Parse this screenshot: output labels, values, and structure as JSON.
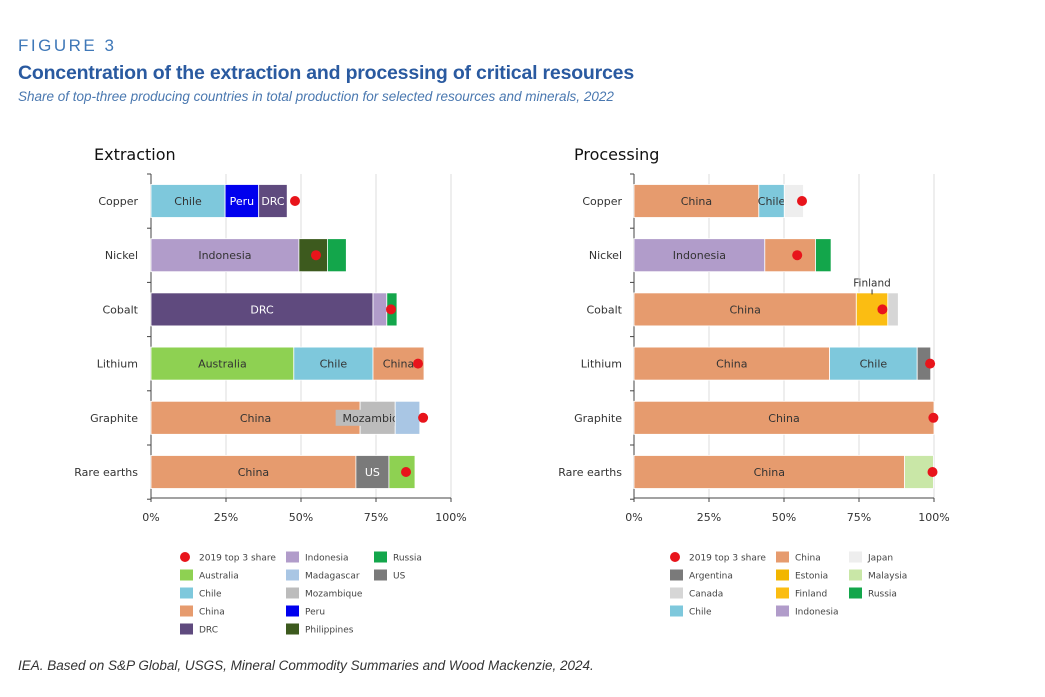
{
  "header": {
    "figure_label": "FIGURE 3",
    "title": "Concentration of the extraction and processing of critical resources",
    "subtitle": "Share of top-three producing countries in total production for selected resources and minerals, 2022"
  },
  "source": "IEA. Based on S&P Global, USGS, Mineral Commodity Summaries and Wood Mackenzie, 2024.",
  "chart_data": [
    {
      "type": "bar",
      "orientation": "horizontal",
      "stacked": true,
      "title": "Extraction",
      "categories": [
        "Copper",
        "Nickel",
        "Cobalt",
        "Lithium",
        "Graphite",
        "Rare earths"
      ],
      "xlim": [
        0,
        100
      ],
      "x_ticks": [
        "0%",
        "25%",
        "50%",
        "75%",
        "100%"
      ],
      "grid": true,
      "unit": "%",
      "bars": [
        {
          "category": "Copper",
          "segments": [
            {
              "country": "Chile",
              "value": 24.7,
              "label": "Chile"
            },
            {
              "country": "Peru",
              "value": 11.2,
              "label": "Peru"
            },
            {
              "country": "DRC",
              "value": 9.5,
              "label": "DRC"
            }
          ],
          "share_2019": 48
        },
        {
          "category": "Nickel",
          "segments": [
            {
              "country": "Indonesia",
              "value": 49.3,
              "label": "Indonesia"
            },
            {
              "country": "Philippines",
              "value": 9.5
            },
            {
              "country": "Russia",
              "value": 6.3
            }
          ],
          "share_2019": 55
        },
        {
          "category": "Cobalt",
          "segments": [
            {
              "country": "DRC",
              "value": 74.0,
              "label": "DRC"
            },
            {
              "country": "Indonesia",
              "value": 4.6
            },
            {
              "country": "Russia",
              "value": 3.4
            }
          ],
          "share_2019": 80
        },
        {
          "category": "Lithium",
          "segments": [
            {
              "country": "Australia",
              "value": 47.6,
              "label": "Australia"
            },
            {
              "country": "Chile",
              "value": 26.4,
              "label": "Chile"
            },
            {
              "country": "China",
              "value": 17.0,
              "label": "China"
            }
          ],
          "share_2019": 89
        },
        {
          "category": "Graphite",
          "segments": [
            {
              "country": "China",
              "value": 69.7,
              "label": "China"
            },
            {
              "country": "Mozambique",
              "value": 11.7,
              "label": "Mozambique"
            },
            {
              "country": "Madagascar",
              "value": 8.2
            }
          ],
          "share_2019": 90.7
        },
        {
          "category": "Rare earths",
          "segments": [
            {
              "country": "China",
              "value": 68.3,
              "label": "China"
            },
            {
              "country": "US",
              "value": 11.0,
              "label": "US"
            },
            {
              "country": "Australia",
              "value": 8.7
            }
          ],
          "share_2019": 85
        }
      ],
      "legend": [
        "2019 top 3 share",
        "Australia",
        "Chile",
        "China",
        "DRC",
        "Indonesia",
        "Madagascar",
        "Mozambique",
        "Peru",
        "Philippines",
        "Russia",
        "US"
      ],
      "legend_placement": "bottom"
    },
    {
      "type": "bar",
      "orientation": "horizontal",
      "stacked": true,
      "title": "Processing",
      "categories": [
        "Copper",
        "Nickel",
        "Cobalt",
        "Lithium",
        "Graphite",
        "Rare earths"
      ],
      "xlim": [
        0,
        100
      ],
      "x_ticks": [
        "0%",
        "25%",
        "50%",
        "75%",
        "100%"
      ],
      "grid": true,
      "unit": "%",
      "bars": [
        {
          "category": "Copper",
          "segments": [
            {
              "country": "China",
              "value": 41.6,
              "label": "China"
            },
            {
              "country": "Chile",
              "value": 8.5,
              "label": "Chile"
            },
            {
              "country": "Japan",
              "value": 6.4
            }
          ],
          "share_2019": 56
        },
        {
          "category": "Nickel",
          "segments": [
            {
              "country": "Indonesia",
              "value": 43.6,
              "label": "Indonesia"
            },
            {
              "country": "China",
              "value": 16.9
            },
            {
              "country": "Russia",
              "value": 5.2
            }
          ],
          "share_2019": 54.4
        },
        {
          "category": "Cobalt",
          "segments": [
            {
              "country": "China",
              "value": 74.1,
              "label": "China"
            },
            {
              "country": "Finland",
              "value": 10.5,
              "callout": "Finland"
            },
            {
              "country": "Canada",
              "value": 3.5
            }
          ],
          "share_2019": 82.8
        },
        {
          "category": "Lithium",
          "segments": [
            {
              "country": "China",
              "value": 65.2,
              "label": "China"
            },
            {
              "country": "Chile",
              "value": 29.2,
              "label": "Chile"
            },
            {
              "country": "Argentina",
              "value": 4.5
            }
          ],
          "share_2019": 98.7
        },
        {
          "category": "Graphite",
          "segments": [
            {
              "country": "China",
              "value": 100,
              "label": "China"
            }
          ],
          "share_2019": 99.8
        },
        {
          "category": "Rare earths",
          "segments": [
            {
              "country": "China",
              "value": 90.2,
              "label": "China"
            },
            {
              "country": "Malaysia",
              "value": 9.6
            }
          ],
          "share_2019": 99.5
        }
      ],
      "legend": [
        "2019 top 3 share",
        "Argentina",
        "Canada",
        "Chile",
        "China",
        "Estonia",
        "Finland",
        "Indonesia",
        "Japan",
        "Malaysia",
        "Russia"
      ],
      "legend_placement": "bottom"
    }
  ],
  "colors": {
    "2019 top 3 share": "#e8141b",
    "Australia": "#8ed152",
    "Chile": "#7ec8dc",
    "China": "#e69b6e",
    "DRC": "#5f4a7e",
    "Indonesia": "#b19cca",
    "Madagascar": "#a9c6e4",
    "Mozambique": "#bcbcbc",
    "Peru": "#0000ee",
    "Philippines": "#3d5a1e",
    "Russia": "#13a64b",
    "US": "#7a7a7a",
    "Argentina": "#7a7a7a",
    "Canada": "#d6d6d6",
    "Estonia": "#f2b600",
    "Finland": "#fbbd12",
    "Japan": "#eeeeee",
    "Malaysia": "#c9e7a7"
  }
}
